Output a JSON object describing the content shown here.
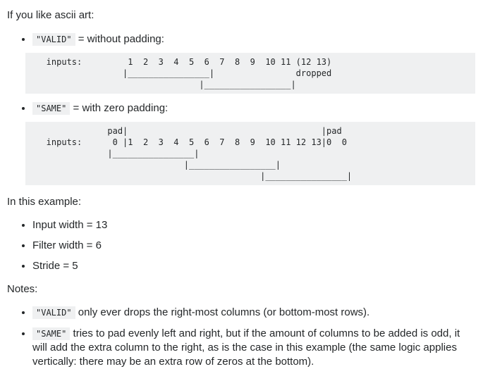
{
  "page": {
    "intro": "If you like ascii art:",
    "padding_examples": [
      {
        "code": "\"VALID\"",
        "desc": " = without padding:",
        "ascii": "   inputs:         1  2  3  4  5  6  7  8  9  10 11 (12 13)\n                  |________________|                dropped\n                                 |_________________|"
      },
      {
        "code": "\"SAME\"",
        "desc": " = with zero padding:",
        "ascii": "               pad|                                      |pad\n   inputs:      0 |1  2  3  4  5  6  7  8  9  10 11 12 13|0  0\n               |________________|\n                              |_________________|\n                                             |________________|"
      }
    ],
    "example": {
      "heading": "In this example:",
      "items": [
        "Input width = 13",
        "Filter width = 6",
        "Stride = 5"
      ]
    },
    "notes": {
      "heading": "Notes:",
      "items": [
        {
          "code": "\"VALID\"",
          "text": " only ever drops the right-most columns (or bottom-most rows)."
        },
        {
          "code": "\"SAME\"",
          "text": " tries to pad evenly left and right, but if the amount of columns to be added is odd, it will add the extra column to the right, as is the case in this example (the same logic applies vertically: there may be an extra row of zeros at the bottom)."
        }
      ]
    },
    "colors": {
      "code_background": "#eff0f1",
      "text": "#242729",
      "page_background": "#ffffff"
    }
  }
}
